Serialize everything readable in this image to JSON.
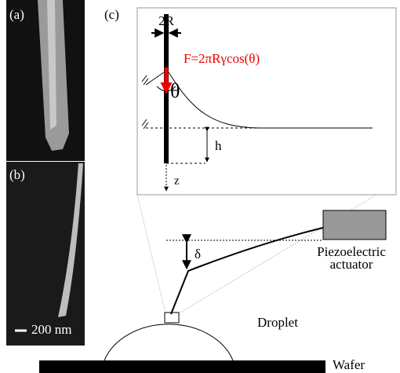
{
  "panels": {
    "a": "(a)",
    "b": "(b)",
    "c": "(c)"
  },
  "scale_bar": "200 nm",
  "inset": {
    "width_label": "2R",
    "force": "F=2πRγcos(θ)",
    "angle": "θ",
    "height": "h",
    "axis": "z"
  },
  "setup": {
    "deflection": "δ",
    "actuator": [
      "Piezoelectric",
      "actuator"
    ],
    "droplet": "Droplet",
    "wafer": "Wafer"
  }
}
